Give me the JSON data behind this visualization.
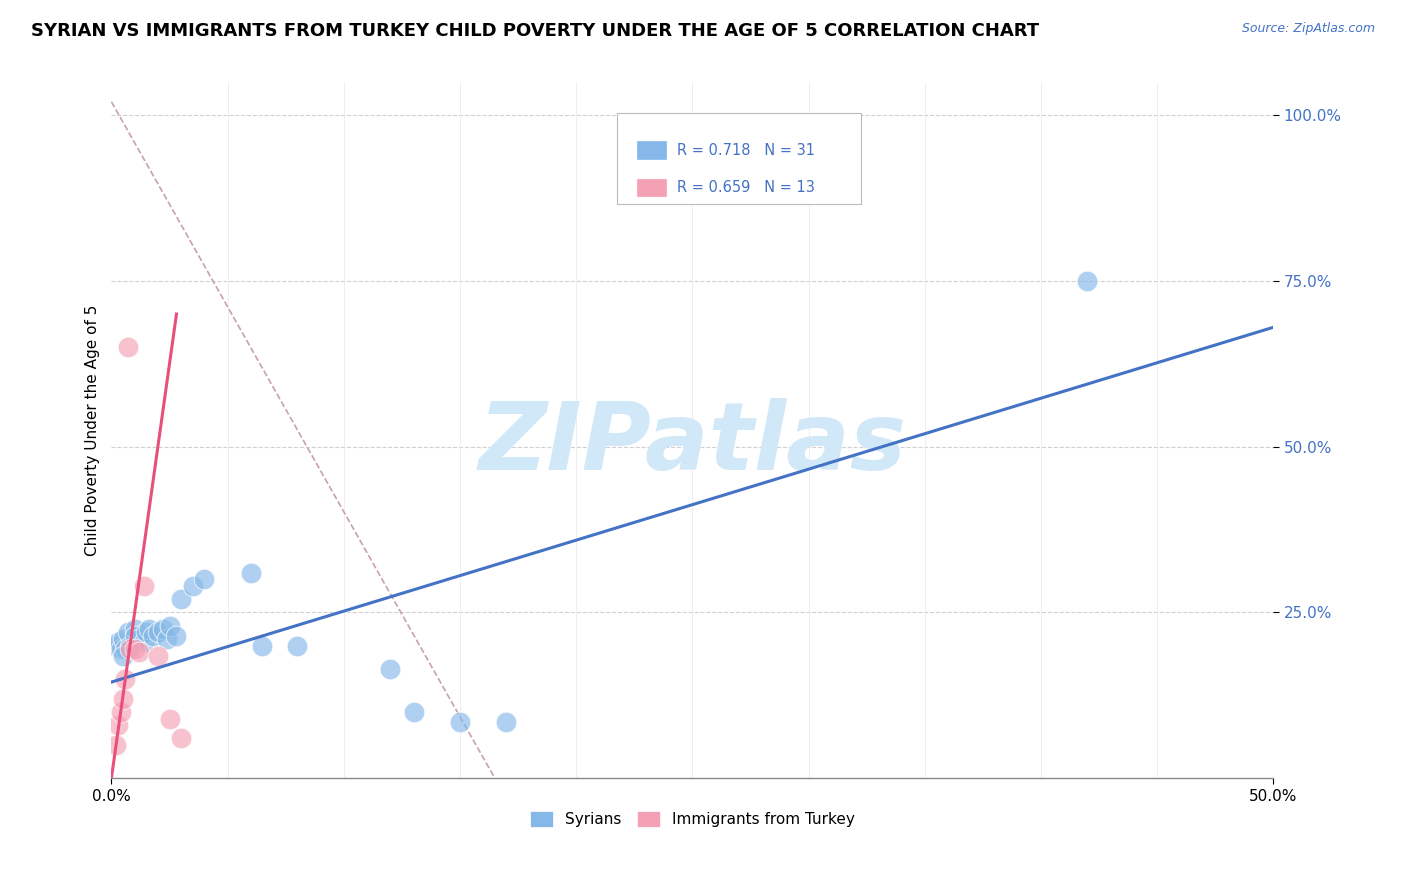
{
  "title": "SYRIAN VS IMMIGRANTS FROM TURKEY CHILD POVERTY UNDER THE AGE OF 5 CORRELATION CHART",
  "source": "Source: ZipAtlas.com",
  "ylabel": "Child Poverty Under the Age of 5",
  "xlim": [
    0.0,
    0.5
  ],
  "ylim": [
    0.0,
    1.05
  ],
  "ytick_vals": [
    0.25,
    0.5,
    0.75,
    1.0
  ],
  "ytick_labels": [
    "25.0%",
    "50.0%",
    "75.0%",
    "100.0%"
  ],
  "xtick_vals": [
    0.0,
    0.5
  ],
  "xtick_labels": [
    "0.0%",
    "50.0%"
  ],
  "legend_label1": "Syrians",
  "legend_label2": "Immigrants from Turkey",
  "legend_r1": "R = 0.718",
  "legend_n1": "N = 31",
  "legend_r2": "R = 0.659",
  "legend_n2": "N = 13",
  "color_syrians": "#85b8e8",
  "color_turkey": "#f4a0b5",
  "color_line_syrians": "#4472c4",
  "color_line_turkey": "#e8507a",
  "color_dashed": "#c8a0b0",
  "color_grid": "#d0d0d0",
  "color_ytick": "#4472c4",
  "color_source": "#4472c4",
  "background_color": "#ffffff",
  "watermark_text": "ZIPatlas",
  "watermark_color": "#d0e8f8",
  "title_fontsize": 13,
  "axis_label_fontsize": 11,
  "tick_fontsize": 11,
  "legend_fontsize": 11,
  "scatter_syrians_x": [
    0.002,
    0.003,
    0.004,
    0.005,
    0.006,
    0.007,
    0.008,
    0.01,
    0.01,
    0.012,
    0.014,
    0.015,
    0.016,
    0.018,
    0.02,
    0.022,
    0.024,
    0.025,
    0.028,
    0.03,
    0.035,
    0.04,
    0.06,
    0.065,
    0.08,
    0.12,
    0.13,
    0.15,
    0.17,
    0.42,
    0.005
  ],
  "scatter_syrians_y": [
    0.2,
    0.205,
    0.195,
    0.21,
    0.195,
    0.22,
    0.2,
    0.225,
    0.215,
    0.21,
    0.205,
    0.22,
    0.225,
    0.215,
    0.22,
    0.225,
    0.21,
    0.23,
    0.215,
    0.27,
    0.29,
    0.3,
    0.31,
    0.2,
    0.2,
    0.165,
    0.1,
    0.085,
    0.085,
    0.75,
    0.185
  ],
  "scatter_turkey_x": [
    0.002,
    0.003,
    0.004,
    0.005,
    0.006,
    0.007,
    0.008,
    0.01,
    0.012,
    0.014,
    0.02,
    0.025,
    0.03
  ],
  "scatter_turkey_y": [
    0.05,
    0.08,
    0.1,
    0.12,
    0.15,
    0.65,
    0.195,
    0.195,
    0.19,
    0.29,
    0.185,
    0.09,
    0.06
  ],
  "blue_line_x": [
    0.0,
    0.5
  ],
  "blue_line_y": [
    0.145,
    0.68
  ],
  "pink_line_x": [
    0.0,
    0.028
  ],
  "pink_line_y": [
    0.0,
    0.7
  ],
  "dashed_line_x": [
    0.0,
    0.165
  ],
  "dashed_line_y": [
    1.02,
    0.0
  ]
}
